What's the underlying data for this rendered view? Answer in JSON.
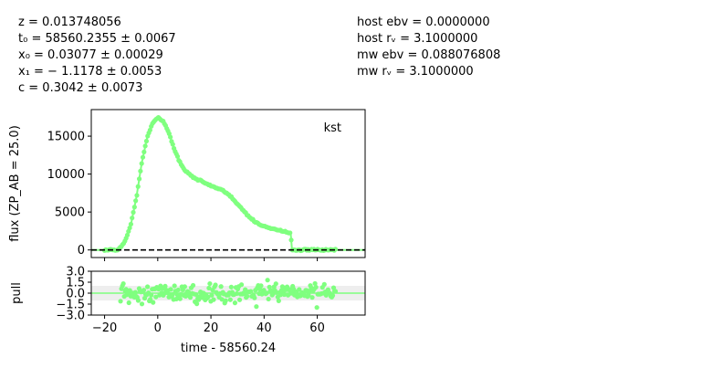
{
  "params_left": [
    "z = 0.013748056",
    "t₀ = 58560.2355 ± 0.0067",
    "x₀ = 0.03077 ± 0.00029",
    "x₁ = − 1.1178 ± 0.0053",
    "c = 0.3042 ± 0.0073"
  ],
  "params_right": [
    "host ebv = 0.0000000",
    "host rᵥ = 3.1000000",
    "mw ebv = 0.088076808",
    "mw rᵥ = 3.1000000"
  ],
  "chart_data": {
    "type": "scatter",
    "band": "kst",
    "xlabel": "time - 58560.24",
    "colors": {
      "data": "#7fff7f",
      "band_fill": "#eeeeee",
      "axis": "#000000"
    },
    "top_panel": {
      "ylabel": "flux (ZP_AB = 25.0)",
      "xlim": [
        -25,
        78
      ],
      "ylim": [
        -1000,
        18500
      ],
      "yticks": [
        0,
        5000,
        10000,
        15000
      ],
      "ytick_labels": [
        "0",
        "5000",
        "10000",
        "15000"
      ],
      "zero_line": 0,
      "model_curve": [
        [
          -25,
          0
        ],
        [
          -15.5,
          0
        ],
        [
          -14,
          300
        ],
        [
          -12,
          1400
        ],
        [
          -10,
          3500
        ],
        [
          -8,
          7000
        ],
        [
          -6,
          11500
        ],
        [
          -4,
          14800
        ],
        [
          -2,
          16700
        ],
        [
          0,
          17500
        ],
        [
          2,
          17000
        ],
        [
          4,
          15600
        ],
        [
          6,
          13500
        ],
        [
          8,
          11800
        ],
        [
          10,
          10600
        ],
        [
          12,
          9900
        ],
        [
          14,
          9500
        ],
        [
          16,
          9150
        ],
        [
          18,
          8800
        ],
        [
          20,
          8450
        ],
        [
          22,
          8150
        ],
        [
          24,
          7900
        ],
        [
          26,
          7450
        ],
        [
          28,
          6850
        ],
        [
          30,
          6100
        ],
        [
          32,
          5300
        ],
        [
          34,
          4500
        ],
        [
          36,
          3850
        ],
        [
          38,
          3400
        ],
        [
          40,
          3100
        ],
        [
          44,
          2750
        ],
        [
          48,
          2400
        ],
        [
          50,
          2200
        ],
        [
          50.5,
          0
        ],
        [
          78,
          0
        ]
      ],
      "points_t_range": [
        -20,
        67
      ],
      "points_step": 0.45
    },
    "pull_panel": {
      "ylabel": "pull",
      "xlim": [
        -25,
        78
      ],
      "ylim": [
        -3.0,
        3.0
      ],
      "yticks": [
        -3.0,
        -1.5,
        0.0,
        1.5,
        3.0
      ],
      "ytick_labels": [
        "−3.0",
        "−1.5",
        "0.0",
        "1.5",
        "3.0"
      ],
      "band": [
        -1,
        1
      ],
      "xticks": [
        -20,
        0,
        20,
        40,
        60
      ],
      "xtick_labels": [
        "−20",
        "0",
        "20",
        "40",
        "60"
      ],
      "points_t_range": [
        -14,
        67
      ],
      "points_step": 0.35
    }
  }
}
